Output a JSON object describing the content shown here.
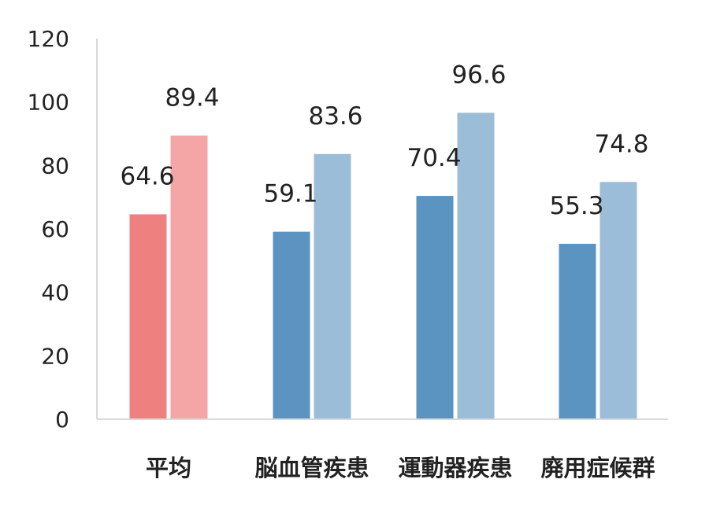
{
  "chart_data": {
    "type": "bar",
    "categories": [
      "平均",
      "脳血管疾患",
      "運動器疾患",
      "廃用症候群"
    ],
    "series": [
      {
        "values": [
          64.6,
          59.1,
          70.4,
          55.3
        ]
      },
      {
        "values": [
          89.4,
          83.6,
          96.6,
          74.8
        ]
      }
    ],
    "bar_labels": [
      [
        "64.6",
        "59.1",
        "70.4",
        "55.3"
      ],
      [
        "89.4",
        "83.6",
        "96.6",
        "74.8"
      ]
    ],
    "y_ticks": [
      "0",
      "20",
      "40",
      "60",
      "80",
      "100",
      "120"
    ],
    "ylim": [
      0,
      120
    ],
    "grid": false,
    "legend": "none",
    "colors": {
      "highlight_series1": "#ee8080",
      "highlight_series2": "#f4a6a6",
      "series1": "#5b94c1",
      "series2": "#9bbdd8",
      "axis": "#d9d9d9",
      "text": "#222222"
    },
    "highlight_category_index": 0
  }
}
